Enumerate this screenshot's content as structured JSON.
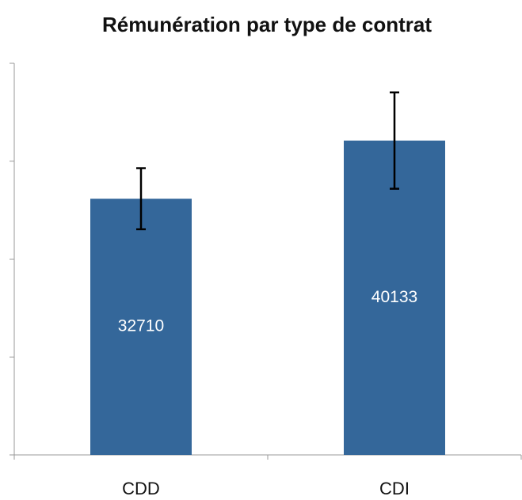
{
  "chart_data": {
    "type": "bar",
    "title": "Rémunération par type de contrat",
    "categories": [
      "CDD",
      "CDI"
    ],
    "values": [
      32710,
      40133
    ],
    "errors": [
      3900,
      6150
    ],
    "color": "#34679a",
    "ylim": [
      0,
      50000
    ],
    "yticks": [
      0,
      12500,
      25000,
      37500,
      50000
    ]
  }
}
